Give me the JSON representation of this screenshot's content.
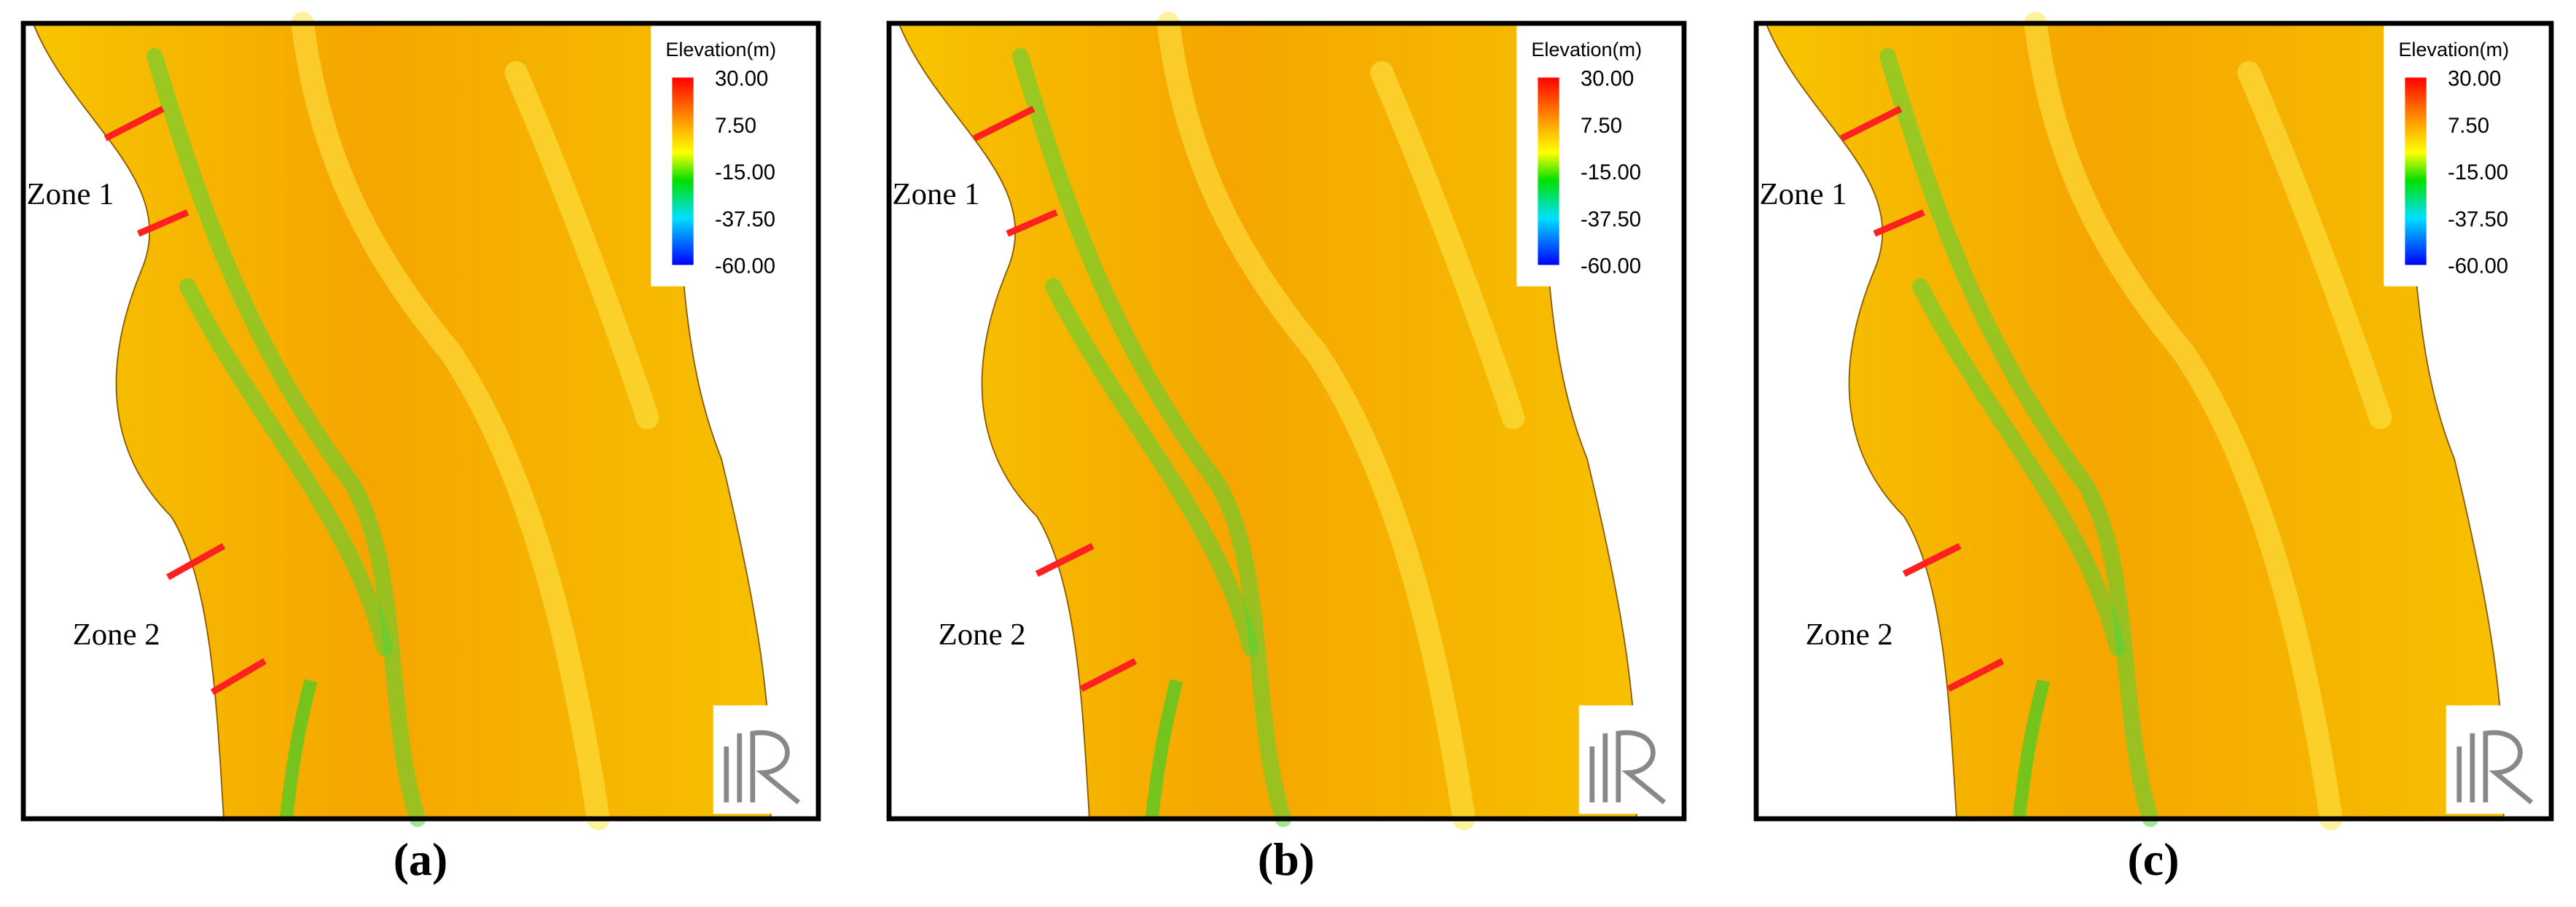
{
  "panels": [
    {
      "label": "(a)",
      "zones": [
        "Zone 1",
        "Zone 2"
      ],
      "legend": {
        "title": "Elevation(m)",
        "ticks": [
          "30.00",
          "7.50",
          "-15.00",
          "-37.50",
          "-60.00"
        ]
      }
    },
    {
      "label": "(b)",
      "zones": [
        "Zone 1",
        "Zone 2"
      ],
      "legend": {
        "title": "Elevation(m)",
        "ticks": [
          "30.00",
          "7.50",
          "-15.00",
          "-37.50",
          "-60.00"
        ]
      }
    },
    {
      "label": "(c)",
      "zones": [
        "Zone 1",
        "Zone 2"
      ],
      "legend": {
        "title": "Elevation(m)",
        "ticks": [
          "30.00",
          "7.50",
          "-15.00",
          "-37.50",
          "-60.00"
        ]
      }
    }
  ]
}
